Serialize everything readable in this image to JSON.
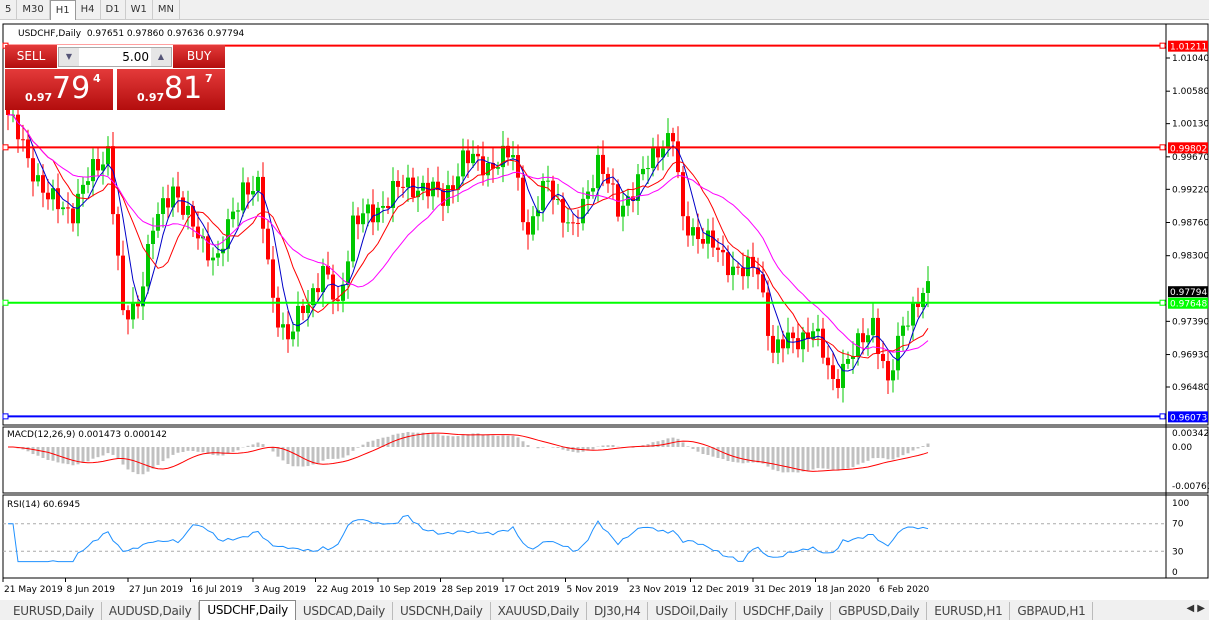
{
  "timeframes": [
    "M30",
    "H1",
    "H4",
    "D1",
    "W1",
    "MN"
  ],
  "timeframe_active": "H1",
  "timeframe_partial": "5",
  "symbol_header": "USDCHF,Daily",
  "ohlc": "0.97651 0.97860 0.97636 0.97794",
  "trade": {
    "sell_label": "SELL",
    "buy_label": "BUY",
    "lot": "5.00",
    "sell_price": {
      "prefix": "0.97",
      "big": "79",
      "sup": "4"
    },
    "buy_price": {
      "prefix": "0.97",
      "big": "81",
      "sup": "7"
    }
  },
  "price_axis": [
    "1.01040",
    "1.00580",
    "1.00130",
    "0.99670",
    "0.99220",
    "0.98760",
    "0.98300",
    "0.97390",
    "0.96930",
    "0.96480"
  ],
  "hlines": [
    {
      "price": 1.01211,
      "label": "1.01211",
      "color": "#ff0000"
    },
    {
      "price": 0.99802,
      "label": "0.99802",
      "color": "#ff0000"
    },
    {
      "price": 0.97648,
      "label": "0.97648",
      "color": "#00ff00"
    },
    {
      "price": 0.96073,
      "label": "0.96073",
      "color": "#0000ff"
    }
  ],
  "last_price": "0.97794",
  "macd": {
    "label": "MACD(12,26,9) 0.001473 0.000142",
    "axis": [
      "0.003428",
      "0.00",
      "-0.007615"
    ]
  },
  "rsi": {
    "label": "RSI(14) 60.6945",
    "axis": [
      "100",
      "70",
      "30",
      "0"
    ]
  },
  "dates": [
    "21 May 2019",
    "8 Jun 2019",
    "27 Jun 2019",
    "16 Jul 2019",
    "3 Aug 2019",
    "22 Aug 2019",
    "10 Sep 2019",
    "28 Sep 2019",
    "17 Oct 2019",
    "5 Nov 2019",
    "23 Nov 2019",
    "12 Dec 2019",
    "31 Dec 2019",
    "18 Jan 2020",
    "6 Feb 2020"
  ],
  "chart_data": {
    "type": "candlestick",
    "symbol": "USDCHF",
    "period": "Daily",
    "approx_close_path": [
      [
        0,
        1.0025
      ],
      [
        8,
        0.9907
      ],
      [
        13,
        0.9893
      ],
      [
        17,
        0.9949
      ],
      [
        20,
        0.9977
      ],
      [
        23,
        0.9741
      ],
      [
        26,
        0.9769
      ],
      [
        29,
        0.9866
      ],
      [
        33,
        0.9928
      ],
      [
        37,
        0.9866
      ],
      [
        42,
        0.9824
      ],
      [
        47,
        0.9928
      ],
      [
        50,
        0.9921
      ],
      [
        53,
        0.9769
      ],
      [
        56,
        0.9713
      ],
      [
        59,
        0.9755
      ],
      [
        63,
        0.981
      ],
      [
        66,
        0.9755
      ],
      [
        69,
        0.9879
      ],
      [
        73,
        0.9886
      ],
      [
        77,
        0.9921
      ],
      [
        83,
        0.9928
      ],
      [
        87,
        0.9907
      ],
      [
        91,
        0.9963
      ],
      [
        97,
        0.9956
      ],
      [
        101,
        0.997
      ],
      [
        104,
        0.9859
      ],
      [
        108,
        0.9935
      ],
      [
        113,
        0.9859
      ],
      [
        118,
        0.9963
      ],
      [
        122,
        0.9893
      ],
      [
        127,
        0.9942
      ],
      [
        131,
        0.999
      ],
      [
        133,
        0.9997
      ],
      [
        135,
        0.9872
      ],
      [
        139,
        0.9859
      ],
      [
        143,
        0.9824
      ],
      [
        147,
        0.981
      ],
      [
        150,
        0.981
      ],
      [
        153,
        0.9699
      ],
      [
        157,
        0.9713
      ],
      [
        161,
        0.9727
      ],
      [
        165,
        0.9658
      ],
      [
        169,
        0.9692
      ],
      [
        173,
        0.9741
      ],
      [
        176,
        0.9644
      ],
      [
        179,
        0.9741
      ],
      [
        184,
        0.9779
      ]
    ],
    "colors": {
      "up": "#00c800",
      "down": "#ff0000",
      "ma_fast": "#0000c8",
      "ma_mid": "#ff0000",
      "ma_slow": "#ff00ff"
    }
  }
}
